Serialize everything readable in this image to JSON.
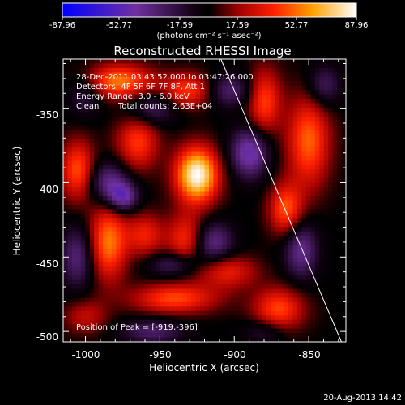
{
  "colorbar": {
    "tick_labels": [
      "-87.96",
      "-52.77",
      "-17.59",
      "17.59",
      "52.77",
      "87.96"
    ],
    "range": [
      -87.96,
      87.96
    ],
    "unit_label": "(photons cm⁻² s⁻¹ asec⁻²)"
  },
  "chart_data": {
    "type": "heatmap",
    "title": "Reconstructed RHESSI Image",
    "xlabel": "Heliocentric X (arcsec)",
    "ylabel": "Heliocentric Y (arcsec)",
    "xlim": [
      -1015,
      -825
    ],
    "ylim": [
      -507,
      -317
    ],
    "x_ticks": [
      -1000,
      -950,
      -900,
      -850
    ],
    "y_ticks": [
      -350,
      -400,
      -450,
      -500
    ],
    "peak": {
      "x": -919,
      "y": -396,
      "value": 87.96
    },
    "sources": [
      {
        "x": -925,
        "y": -395,
        "value": 88,
        "sx": 10,
        "sy": 13
      },
      {
        "x": -965,
        "y": -373,
        "value": 42,
        "sx": 10,
        "sy": 13
      },
      {
        "x": -978,
        "y": -332,
        "value": 55,
        "sx": 16,
        "sy": 8
      },
      {
        "x": -930,
        "y": -338,
        "value": 45,
        "sx": 13,
        "sy": 8
      },
      {
        "x": -880,
        "y": -345,
        "value": 45,
        "sx": 8,
        "sy": 15
      },
      {
        "x": -850,
        "y": -372,
        "value": 50,
        "sx": 10,
        "sy": 22
      },
      {
        "x": -1005,
        "y": -392,
        "value": 48,
        "sx": 8,
        "sy": 14
      },
      {
        "x": -985,
        "y": -440,
        "value": 55,
        "sx": 9,
        "sy": 18
      },
      {
        "x": -960,
        "y": -435,
        "value": 35,
        "sx": 9,
        "sy": 10
      },
      {
        "x": -932,
        "y": -438,
        "value": 42,
        "sx": 9,
        "sy": 12
      },
      {
        "x": -865,
        "y": -418,
        "value": 48,
        "sx": 8,
        "sy": 12
      },
      {
        "x": -905,
        "y": -460,
        "value": 35,
        "sx": 14,
        "sy": 8
      },
      {
        "x": -940,
        "y": -478,
        "value": 45,
        "sx": 20,
        "sy": 7
      },
      {
        "x": -870,
        "y": -485,
        "value": 45,
        "sx": 12,
        "sy": 10
      },
      {
        "x": -1000,
        "y": -490,
        "value": 25,
        "sx": 10,
        "sy": 8
      },
      {
        "x": -985,
        "y": -400,
        "value": -40,
        "sx": 10,
        "sy": 10
      },
      {
        "x": -975,
        "y": -410,
        "value": -45,
        "sx": 7,
        "sy": 7
      },
      {
        "x": -890,
        "y": -380,
        "value": -50,
        "sx": 9,
        "sy": 12
      },
      {
        "x": -905,
        "y": -338,
        "value": -35,
        "sx": 12,
        "sy": 8
      },
      {
        "x": -955,
        "y": -350,
        "value": -30,
        "sx": 12,
        "sy": 8
      },
      {
        "x": -915,
        "y": -440,
        "value": -40,
        "sx": 10,
        "sy": 10
      },
      {
        "x": -940,
        "y": -455,
        "value": -30,
        "sx": 12,
        "sy": 6
      },
      {
        "x": -855,
        "y": -445,
        "value": -40,
        "sx": 8,
        "sy": 14
      },
      {
        "x": -1005,
        "y": -450,
        "value": -35,
        "sx": 8,
        "sy": 15
      },
      {
        "x": -1000,
        "y": -340,
        "value": -25,
        "sx": 8,
        "sy": 10
      },
      {
        "x": -955,
        "y": -500,
        "value": -30,
        "sx": 15,
        "sy": 6
      },
      {
        "x": -880,
        "y": -500,
        "value": -20,
        "sx": 10,
        "sy": 6
      },
      {
        "x": -840,
        "y": -335,
        "value": -30,
        "sx": 8,
        "sy": 10
      }
    ],
    "limb_line": [
      [
        -909,
        -317
      ],
      [
        -828,
        -507
      ]
    ]
  },
  "annotations": {
    "time_range": "28-Dec-2011 03:43:52.000 to 03:47:26.000",
    "detectors": "Detectors: 4F 5F 6F 7F 8F, Att 1",
    "energy": "Energy Range: 3.0 - 6.0 keV",
    "method": "Clean",
    "total_counts": "Total counts: 2.63E+04",
    "peak_label": "Position of Peak = [-919,-396]"
  },
  "footer": {
    "date": "20-Aug-2013 14:42"
  }
}
